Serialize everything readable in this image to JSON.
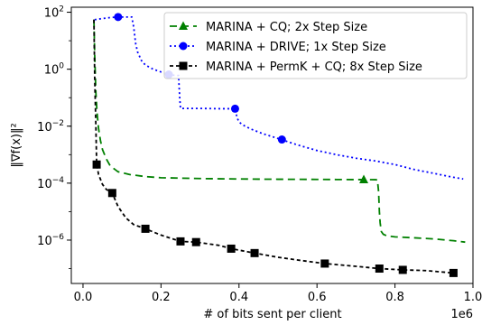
{
  "chart_data": {
    "type": "line",
    "title": "",
    "xlabel": "# of bits sent per client",
    "ylabel": "‖∇f(x)‖²",
    "x_offset_label": "1e6",
    "xlim": [
      -0.03,
      1.0
    ],
    "ylim": [
      3e-08,
      150
    ],
    "yscale": "log",
    "x_ticks": [
      0.0,
      0.2,
      0.4,
      0.6,
      0.8,
      1.0
    ],
    "x_tick_labels": [
      "0.0",
      "0.2",
      "0.4",
      "0.6",
      "0.8",
      "1.0"
    ],
    "y_ticks": [
      {
        "value": 100,
        "base": "10",
        "exp": "2"
      },
      {
        "value": 1,
        "base": "10",
        "exp": "0"
      },
      {
        "value": 0.01,
        "base": "10",
        "exp": "−2"
      },
      {
        "value": 0.0001,
        "base": "10",
        "exp": "−4"
      },
      {
        "value": 1e-06,
        "base": "10",
        "exp": "−6"
      }
    ],
    "legend_position": "top-right",
    "series": [
      {
        "name": "MARINA + CQ; 2x Step Size",
        "color": "#008000",
        "dash": "8,5",
        "marker": "triangle",
        "x": [
          0.028,
          0.03,
          0.033,
          0.036,
          0.04,
          0.045,
          0.05,
          0.06,
          0.07,
          0.09,
          0.12,
          0.16,
          0.2,
          0.25,
          0.3,
          0.35,
          0.4,
          0.45,
          0.5,
          0.55,
          0.6,
          0.65,
          0.7,
          0.72,
          0.75,
          0.755,
          0.758,
          0.76,
          0.762,
          0.765,
          0.77,
          0.78,
          0.8,
          0.85,
          0.9,
          0.95,
          0.98
        ],
        "y": [
          55,
          3,
          0.15,
          0.03,
          0.008,
          0.003,
          0.0015,
          0.0007,
          0.0004,
          0.00025,
          0.0002,
          0.00017,
          0.000155,
          0.00015,
          0.000145,
          0.000142,
          0.00014,
          0.000138,
          0.000137,
          0.000136,
          0.000135,
          0.000134,
          0.000133,
          0.000133,
          0.000132,
          0.00013,
          5e-05,
          1e-05,
          4e-06,
          2e-06,
          1.6e-06,
          1.4e-06,
          1.3e-06,
          1.2e-06,
          1.1e-06,
          9.5e-07,
          8.5e-07
        ],
        "marker_points": [
          {
            "x": 0.72,
            "y": 0.000133
          }
        ]
      },
      {
        "name": "MARINA + DRIVE; 1x Step Size",
        "color": "#0000ff",
        "dash": "2,3",
        "marker": "circle",
        "x": [
          0.03,
          0.05,
          0.07,
          0.09,
          0.11,
          0.125,
          0.13,
          0.135,
          0.14,
          0.15,
          0.16,
          0.18,
          0.2,
          0.22,
          0.23,
          0.24,
          0.245,
          0.248,
          0.25,
          0.27,
          0.3,
          0.35,
          0.39,
          0.395,
          0.4,
          0.41,
          0.43,
          0.46,
          0.5,
          0.52,
          0.55,
          0.6,
          0.65,
          0.7,
          0.75,
          0.8,
          0.85,
          0.9,
          0.95,
          0.975
        ],
        "y": [
          55,
          60,
          65,
          68,
          68,
          68,
          30,
          8,
          4,
          2,
          1.4,
          1,
          0.8,
          0.65,
          0.62,
          0.6,
          0.6,
          0.1,
          0.042,
          0.042,
          0.042,
          0.041,
          0.041,
          0.02,
          0.014,
          0.011,
          0.008,
          0.0055,
          0.0037,
          0.003,
          0.0022,
          0.0014,
          0.001,
          0.00075,
          0.0006,
          0.00045,
          0.0003,
          0.00022,
          0.00016,
          0.00014
        ],
        "marker_points": [
          {
            "x": 0.09,
            "y": 68
          },
          {
            "x": 0.22,
            "y": 0.65
          },
          {
            "x": 0.39,
            "y": 0.041
          },
          {
            "x": 0.51,
            "y": 0.0034
          }
        ]
      },
      {
        "name": "MARINA + PermK + CQ; 8x Step Size",
        "color": "#000000",
        "dash": "4,3",
        "marker": "square",
        "x": [
          0.028,
          0.03,
          0.033,
          0.035,
          0.04,
          0.05,
          0.06,
          0.075,
          0.09,
          0.11,
          0.13,
          0.16,
          0.2,
          0.25,
          0.29,
          0.35,
          0.38,
          0.44,
          0.5,
          0.55,
          0.62,
          0.7,
          0.76,
          0.82,
          0.88,
          0.95
        ],
        "y": [
          55,
          0.5,
          0.01,
          0.00045,
          0.0002,
          9e-05,
          6e-05,
          4.5e-05,
          1.5e-05,
          6e-06,
          3.5e-06,
          2.5e-06,
          1.5e-06,
          9e-07,
          8.5e-07,
          6.5e-07,
          5e-07,
          3.5e-07,
          2.5e-07,
          2e-07,
          1.5e-07,
          1.2e-07,
          1e-07,
          9e-08,
          8.5e-08,
          7e-08
        ],
        "marker_points": [
          {
            "x": 0.035,
            "y": 0.00045
          },
          {
            "x": 0.075,
            "y": 4.5e-05
          },
          {
            "x": 0.16,
            "y": 2.5e-06
          },
          {
            "x": 0.25,
            "y": 9e-07
          },
          {
            "x": 0.29,
            "y": 8.5e-07
          },
          {
            "x": 0.38,
            "y": 5e-07
          },
          {
            "x": 0.44,
            "y": 3.5e-07
          },
          {
            "x": 0.62,
            "y": 1.5e-07
          },
          {
            "x": 0.76,
            "y": 1e-07
          },
          {
            "x": 0.82,
            "y": 9e-08
          },
          {
            "x": 0.95,
            "y": 7e-08
          }
        ]
      }
    ]
  }
}
